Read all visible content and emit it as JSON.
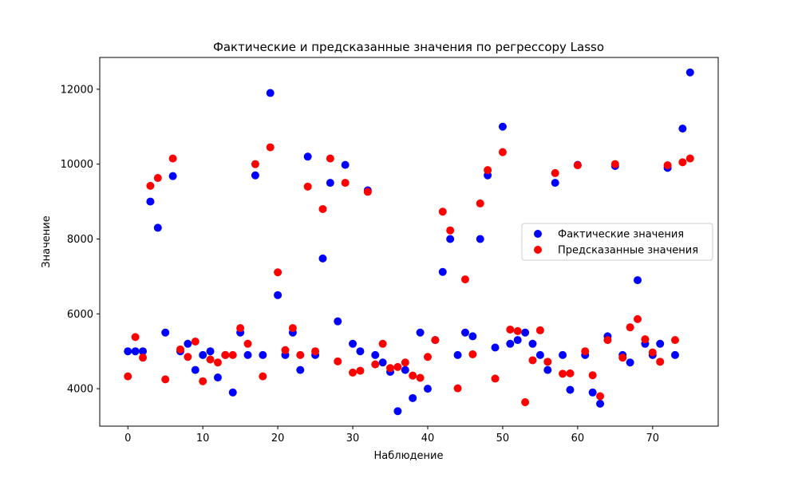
{
  "chart_data": {
    "type": "scatter",
    "title": "Фактические и предсказанные значения по регрессору Lasso",
    "xlabel": "Наблюдение",
    "ylabel": "Значение",
    "xlim": [
      -3.75,
      78.75
    ],
    "ylim": [
      3000,
      12850
    ],
    "xticks": [
      0,
      10,
      20,
      30,
      40,
      50,
      60,
      70
    ],
    "yticks": [
      4000,
      6000,
      8000,
      10000,
      12000
    ],
    "legend_position": "center-right",
    "grid": false,
    "series": [
      {
        "name": "Фактические значения",
        "color": "#0000ff",
        "x": [
          0,
          1,
          2,
          3,
          4,
          5,
          6,
          7,
          8,
          9,
          10,
          11,
          12,
          13,
          14,
          15,
          16,
          17,
          18,
          19,
          20,
          21,
          22,
          23,
          24,
          25,
          26,
          27,
          28,
          29,
          30,
          31,
          32,
          33,
          34,
          35,
          36,
          37,
          38,
          39,
          40,
          41,
          42,
          43,
          44,
          45,
          46,
          47,
          48,
          49,
          50,
          51,
          52,
          53,
          54,
          55,
          56,
          57,
          58,
          59,
          60,
          61,
          62,
          63,
          64,
          65,
          66,
          67,
          68,
          69,
          70,
          71,
          72,
          73,
          74,
          75
        ],
        "y": [
          5000,
          5000,
          5000,
          9000,
          8300,
          5500,
          9680,
          5000,
          5200,
          4500,
          4900,
          5000,
          4300,
          4900,
          3900,
          5500,
          4900,
          9700,
          4900,
          11900,
          6500,
          4900,
          5500,
          4500,
          10200,
          4900,
          7480,
          9500,
          5800,
          9980,
          5200,
          5000,
          9300,
          4900,
          4700,
          4450,
          3400,
          4500,
          3750,
          5500,
          4000,
          5300,
          7120,
          8000,
          4900,
          5500,
          5400,
          8000,
          9700,
          5100,
          11000,
          5200,
          5300,
          5500,
          5200,
          4900,
          4500,
          9500,
          4900,
          3970,
          9980,
          4900,
          3900,
          3600,
          5400,
          9950,
          4900,
          4700,
          6900,
          5200,
          4900,
          5200,
          9900,
          4900,
          10950,
          12450
        ]
      },
      {
        "name": "Предсказанные значения",
        "color": "#ff0000",
        "x": [
          0,
          1,
          2,
          3,
          4,
          5,
          6,
          7,
          8,
          9,
          10,
          11,
          12,
          13,
          14,
          15,
          16,
          17,
          18,
          19,
          20,
          21,
          22,
          23,
          24,
          25,
          26,
          27,
          28,
          29,
          30,
          31,
          32,
          33,
          34,
          35,
          36,
          37,
          38,
          39,
          40,
          41,
          42,
          43,
          44,
          45,
          46,
          47,
          48,
          49,
          50,
          51,
          52,
          53,
          54,
          55,
          56,
          57,
          58,
          59,
          60,
          61,
          62,
          63,
          64,
          65,
          66,
          67,
          68,
          69,
          70,
          71,
          72,
          73,
          74,
          75
        ],
        "y": [
          4330,
          5380,
          4830,
          9420,
          9630,
          4250,
          10150,
          5050,
          4850,
          5260,
          4200,
          4780,
          4700,
          4900,
          4900,
          5620,
          5200,
          10000,
          4330,
          10450,
          7110,
          5030,
          5620,
          4900,
          9400,
          5000,
          8800,
          10150,
          4730,
          9500,
          4430,
          4480,
          9260,
          4650,
          5200,
          4550,
          4580,
          4700,
          4350,
          4290,
          4850,
          5300,
          8730,
          8230,
          4010,
          6920,
          4920,
          8950,
          9840,
          4270,
          10320,
          5580,
          5540,
          3640,
          4760,
          5560,
          4720,
          9760,
          4400,
          4410,
          9970,
          5000,
          4360,
          3800,
          5300,
          10000,
          4830,
          5640,
          5860,
          5320,
          4970,
          4720,
          9970,
          5300,
          10050,
          10150
        ]
      }
    ]
  }
}
